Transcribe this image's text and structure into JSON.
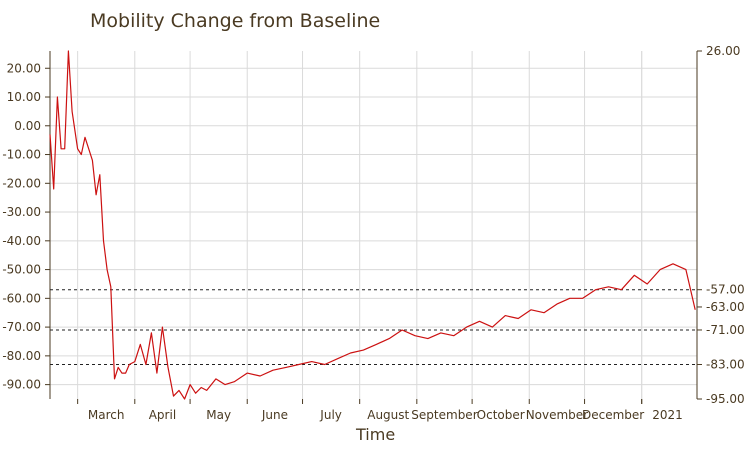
{
  "title": "Mobility Change from Baseline",
  "chart_data": {
    "type": "line",
    "title": "Mobility Change from Baseline",
    "xlabel": "Time",
    "ylabel": "",
    "ylim": [
      -95,
      26
    ],
    "y_ticks": [
      "20.00",
      "10.00",
      "0.00",
      "-10.00",
      "-20.00",
      "-30.00",
      "-40.00",
      "-50.00",
      "-60.00",
      "-70.00",
      "-80.00",
      "-90.00"
    ],
    "x_ticks": [
      "March",
      "April",
      "May",
      "June",
      "July",
      "August",
      "September",
      "October",
      "November",
      "December",
      "2021"
    ],
    "right_axis_labels": [
      "26.00",
      "-57.00",
      "-63.00",
      "-71.00",
      "-83.00",
      "-95.00"
    ],
    "reference_lines": [
      -57,
      -71,
      -83
    ],
    "grid": true,
    "series": [
      {
        "color": "#cc1111",
        "x": [
          "2020-02-15",
          "2020-02-17",
          "2020-02-19",
          "2020-02-21",
          "2020-02-23",
          "2020-02-25",
          "2020-02-27",
          "2020-03-01",
          "2020-03-03",
          "2020-03-05",
          "2020-03-07",
          "2020-03-09",
          "2020-03-11",
          "2020-03-13",
          "2020-03-15",
          "2020-03-17",
          "2020-03-19",
          "2020-03-21",
          "2020-03-23",
          "2020-03-25",
          "2020-03-27",
          "2020-03-29",
          "2020-04-01",
          "2020-04-04",
          "2020-04-07",
          "2020-04-10",
          "2020-04-13",
          "2020-04-16",
          "2020-04-19",
          "2020-04-22",
          "2020-04-25",
          "2020-04-28",
          "2020-05-01",
          "2020-05-04",
          "2020-05-07",
          "2020-05-10",
          "2020-05-15",
          "2020-05-20",
          "2020-05-25",
          "2020-06-01",
          "2020-06-08",
          "2020-06-15",
          "2020-06-22",
          "2020-06-29",
          "2020-07-06",
          "2020-07-13",
          "2020-07-20",
          "2020-07-27",
          "2020-08-03",
          "2020-08-10",
          "2020-08-17",
          "2020-08-24",
          "2020-08-31",
          "2020-09-07",
          "2020-09-14",
          "2020-09-21",
          "2020-09-28",
          "2020-10-05",
          "2020-10-12",
          "2020-10-19",
          "2020-10-26",
          "2020-11-02",
          "2020-11-09",
          "2020-11-16",
          "2020-11-23",
          "2020-11-30",
          "2020-12-07",
          "2020-12-14",
          "2020-12-21",
          "2020-12-28",
          "2021-01-04",
          "2021-01-11",
          "2021-01-18",
          "2021-01-25",
          "2021-01-30"
        ],
        "y": [
          -3,
          -22,
          10,
          -8,
          -8,
          26,
          5,
          -8,
          -10,
          -4,
          -8,
          -12,
          -24,
          -17,
          -40,
          -50,
          -56,
          -88,
          -84,
          -86,
          -86,
          -83,
          -82,
          -76,
          -83,
          -72,
          -86,
          -70,
          -84,
          -94,
          -92,
          -95,
          -90,
          -93,
          -91,
          -92,
          -88,
          -90,
          -89,
          -86,
          -87,
          -85,
          -84,
          -83,
          -82,
          -83,
          -81,
          -79,
          -78,
          -76,
          -74,
          -71,
          -73,
          -74,
          -72,
          -73,
          -70,
          -68,
          -70,
          -66,
          -67,
          -64,
          -65,
          -62,
          -60,
          -60,
          -57,
          -56,
          -57,
          -52,
          -55,
          -50,
          -48,
          -50,
          -64
        ]
      }
    ]
  }
}
